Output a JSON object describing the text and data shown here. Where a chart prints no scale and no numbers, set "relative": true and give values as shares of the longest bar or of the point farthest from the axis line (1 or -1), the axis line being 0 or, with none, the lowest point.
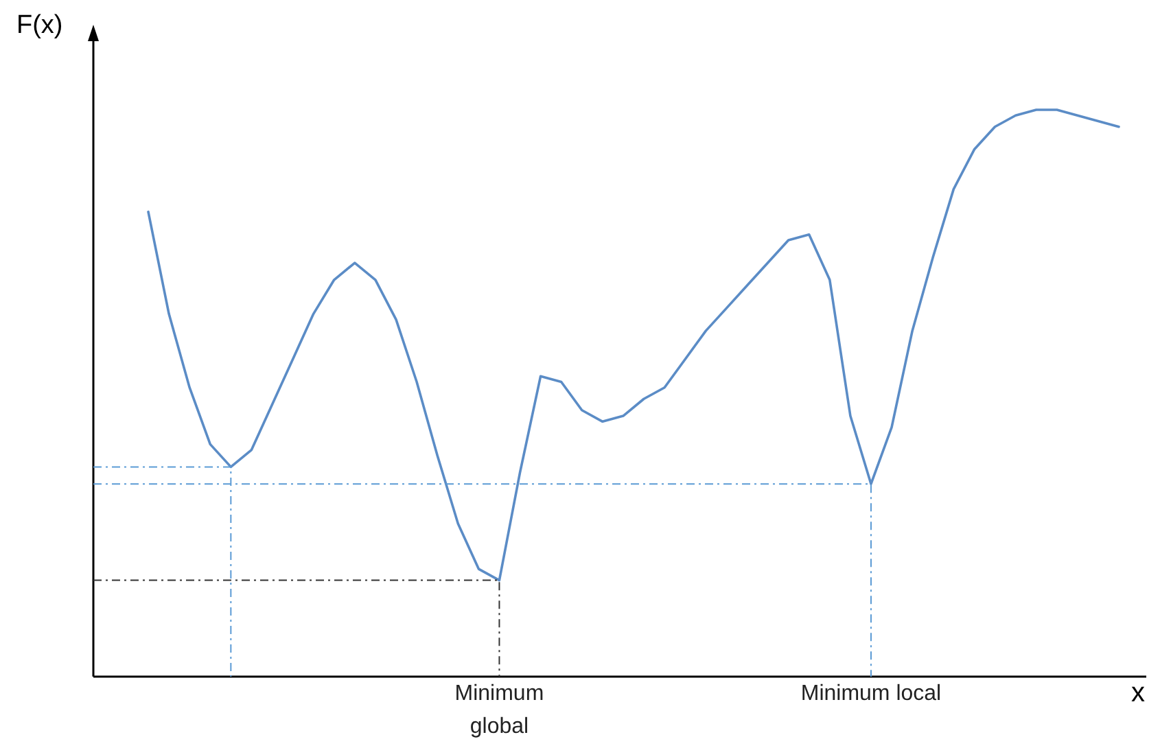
{
  "chart_data": {
    "type": "line",
    "relative": true,
    "ylabel": "F(x)",
    "xlabel": "x",
    "marker": "none",
    "line_style": "solid",
    "categories": [
      null,
      null,
      null,
      null,
      null,
      null,
      null,
      null,
      null,
      null,
      null,
      null,
      null,
      null,
      null,
      null,
      null,
      null,
      null,
      null,
      null,
      null,
      null,
      null,
      null,
      null,
      null,
      null,
      null,
      null,
      null,
      null,
      null,
      null,
      null,
      null,
      null,
      null,
      null,
      null,
      null,
      null,
      null,
      null,
      null,
      null,
      null,
      null
    ],
    "series": [
      {
        "color": "#5b8cc6",
        "values": [
          0.82,
          0.64,
          0.51,
          0.41,
          0.37,
          0.4,
          0.48,
          0.56,
          0.64,
          0.7,
          0.73,
          0.7,
          0.63,
          0.52,
          0.39,
          0.27,
          0.19,
          0.17,
          0.36,
          0.53,
          0.52,
          0.47,
          0.45,
          0.46,
          0.49,
          0.51,
          0.56,
          0.61,
          0.65,
          0.69,
          0.73,
          0.77,
          0.78,
          0.7,
          0.46,
          0.34,
          0.44,
          0.61,
          0.74,
          0.86,
          0.93,
          0.97,
          0.99,
          1,
          1,
          0.99,
          0.98,
          0.97
        ]
      }
    ],
    "ref_lines": [
      {
        "axis": "y",
        "value": 0.37,
        "color": "#5b9bd5",
        "line_style": "dashdot"
      },
      {
        "axis": "y",
        "value": 0.17,
        "color": "#333333",
        "line_style": "dashdot",
        "label": "Minimum global"
      },
      {
        "axis": "y",
        "value": 0.34,
        "color": "#5b9bd5",
        "line_style": "dashdot",
        "label": "Minimum local"
      }
    ]
  }
}
